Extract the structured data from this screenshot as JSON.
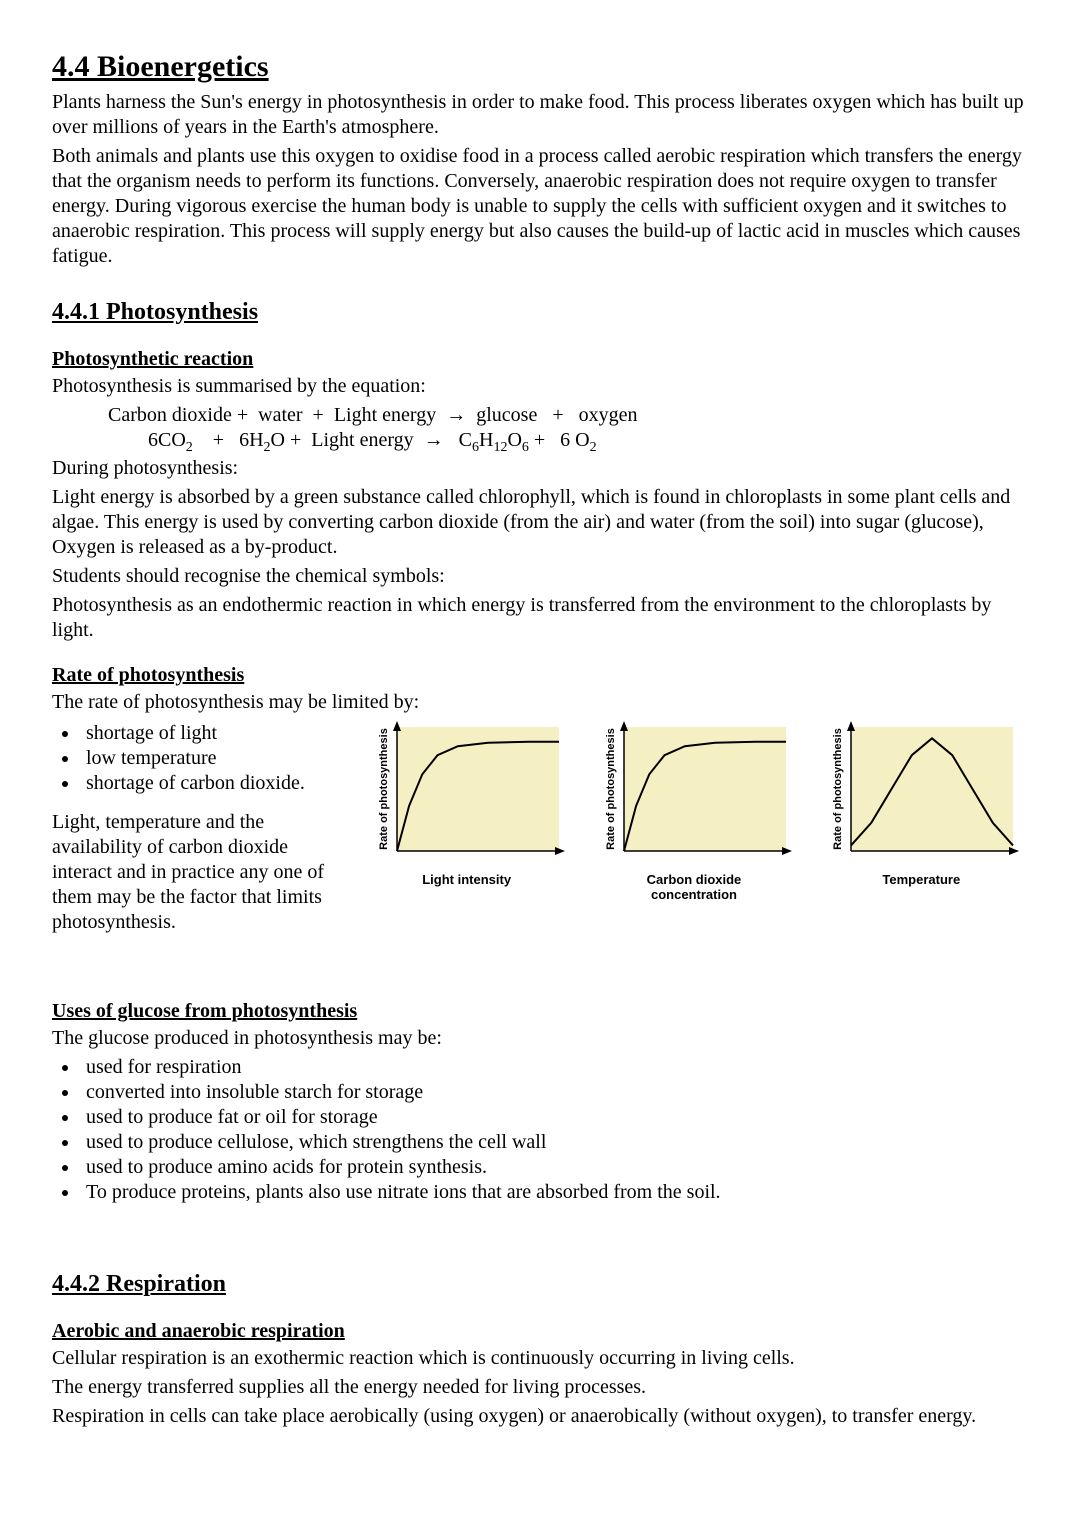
{
  "title": "4.4 Bioenergetics",
  "intro_p1": "Plants harness the Sun's energy in photosynthesis in order to make food. This process liberates oxygen which has built up over millions of years in the Earth's atmosphere.",
  "intro_p2": "Both animals and plants use this oxygen to oxidise food in a process called aerobic respiration which transfers the energy that the organism needs to perform its functions. Conversely, anaerobic respiration does not require oxygen to transfer energy. During vigorous exercise the human body is unable to supply the cells with sufficient oxygen and it switches to anaerobic respiration. This process will supply energy but also causes the build-up of lactic acid in muscles which causes fatigue.",
  "s441_heading": "4.4.1 Photosynthesis",
  "photo_reaction_heading": "Photosynthetic reaction",
  "photo_reaction_intro": "Photosynthesis is summarised by the equation:",
  "photo_after1": "During photosynthesis:",
  "photo_after2": "Light energy is absorbed by a green substance called chlorophyll, which is found in chloroplasts in some plant cells and algae. This energy is used by converting carbon dioxide (from the air) and water (from the soil) into sugar (glucose), Oxygen is released as a by-product.",
  "photo_after3": "Students should recognise the chemical symbols:",
  "photo_after4": "Photosynthesis as an endothermic reaction in which energy is transferred from the environment to the chloroplasts by light.",
  "rate_heading": "Rate of photosynthesis",
  "rate_intro": "The rate of photosynthesis may be limited by:",
  "rate_bullets": [
    "shortage of light",
    "low temperature",
    "shortage of carbon dioxide."
  ],
  "rate_para": "Light, temperature and the availability of carbon dioxide interact and in practice any one of them may be the factor that limits photosynthesis.",
  "charts": {
    "plot_bg": "#f5f0c4",
    "axis_color": "#000000",
    "line_color": "#000000",
    "line_width": 2,
    "ylabel": "Rate of photosynthesis",
    "ylabel_font": "Arial",
    "ylabel_fontsize": 11,
    "ylabel_weight": "bold",
    "plots": [
      {
        "xlabel": "Light intensity",
        "shape": "saturating",
        "points": [
          [
            0,
            0
          ],
          [
            12,
            40
          ],
          [
            25,
            68
          ],
          [
            40,
            85
          ],
          [
            60,
            93
          ],
          [
            90,
            96
          ],
          [
            130,
            97
          ],
          [
            160,
            97
          ]
        ]
      },
      {
        "xlabel": "Carbon dioxide concentration",
        "shape": "saturating",
        "points": [
          [
            0,
            0
          ],
          [
            12,
            40
          ],
          [
            25,
            68
          ],
          [
            40,
            85
          ],
          [
            60,
            93
          ],
          [
            90,
            96
          ],
          [
            130,
            97
          ],
          [
            160,
            97
          ]
        ]
      },
      {
        "xlabel": "Temperature",
        "shape": "bell",
        "points": [
          [
            0,
            5
          ],
          [
            20,
            25
          ],
          [
            40,
            55
          ],
          [
            60,
            85
          ],
          [
            80,
            100
          ],
          [
            100,
            85
          ],
          [
            120,
            55
          ],
          [
            140,
            25
          ],
          [
            160,
            5
          ]
        ]
      }
    ]
  },
  "uses_heading": "Uses of glucose from photosynthesis",
  "uses_intro": "The glucose produced in photosynthesis may be:",
  "uses_bullets": [
    "used for respiration",
    "converted into insoluble starch for storage",
    "used to produce fat or oil for storage",
    "used to produce cellulose, which strengthens the cell wall",
    "used to produce amino acids for protein synthesis.",
    "To produce proteins, plants also use nitrate ions that are absorbed from the soil."
  ],
  "s442_heading": "4.4.2 Respiration",
  "aerobic_heading": "Aerobic and anaerobic respiration",
  "aerobic_p1": "Cellular respiration is an exothermic reaction which is continuously occurring in living cells.",
  "aerobic_p2": "The energy transferred supplies all the energy needed for living processes.",
  "aerobic_p3": "Respiration in cells can take place aerobically (using oxygen) or anaerobically (without oxygen), to transfer energy."
}
